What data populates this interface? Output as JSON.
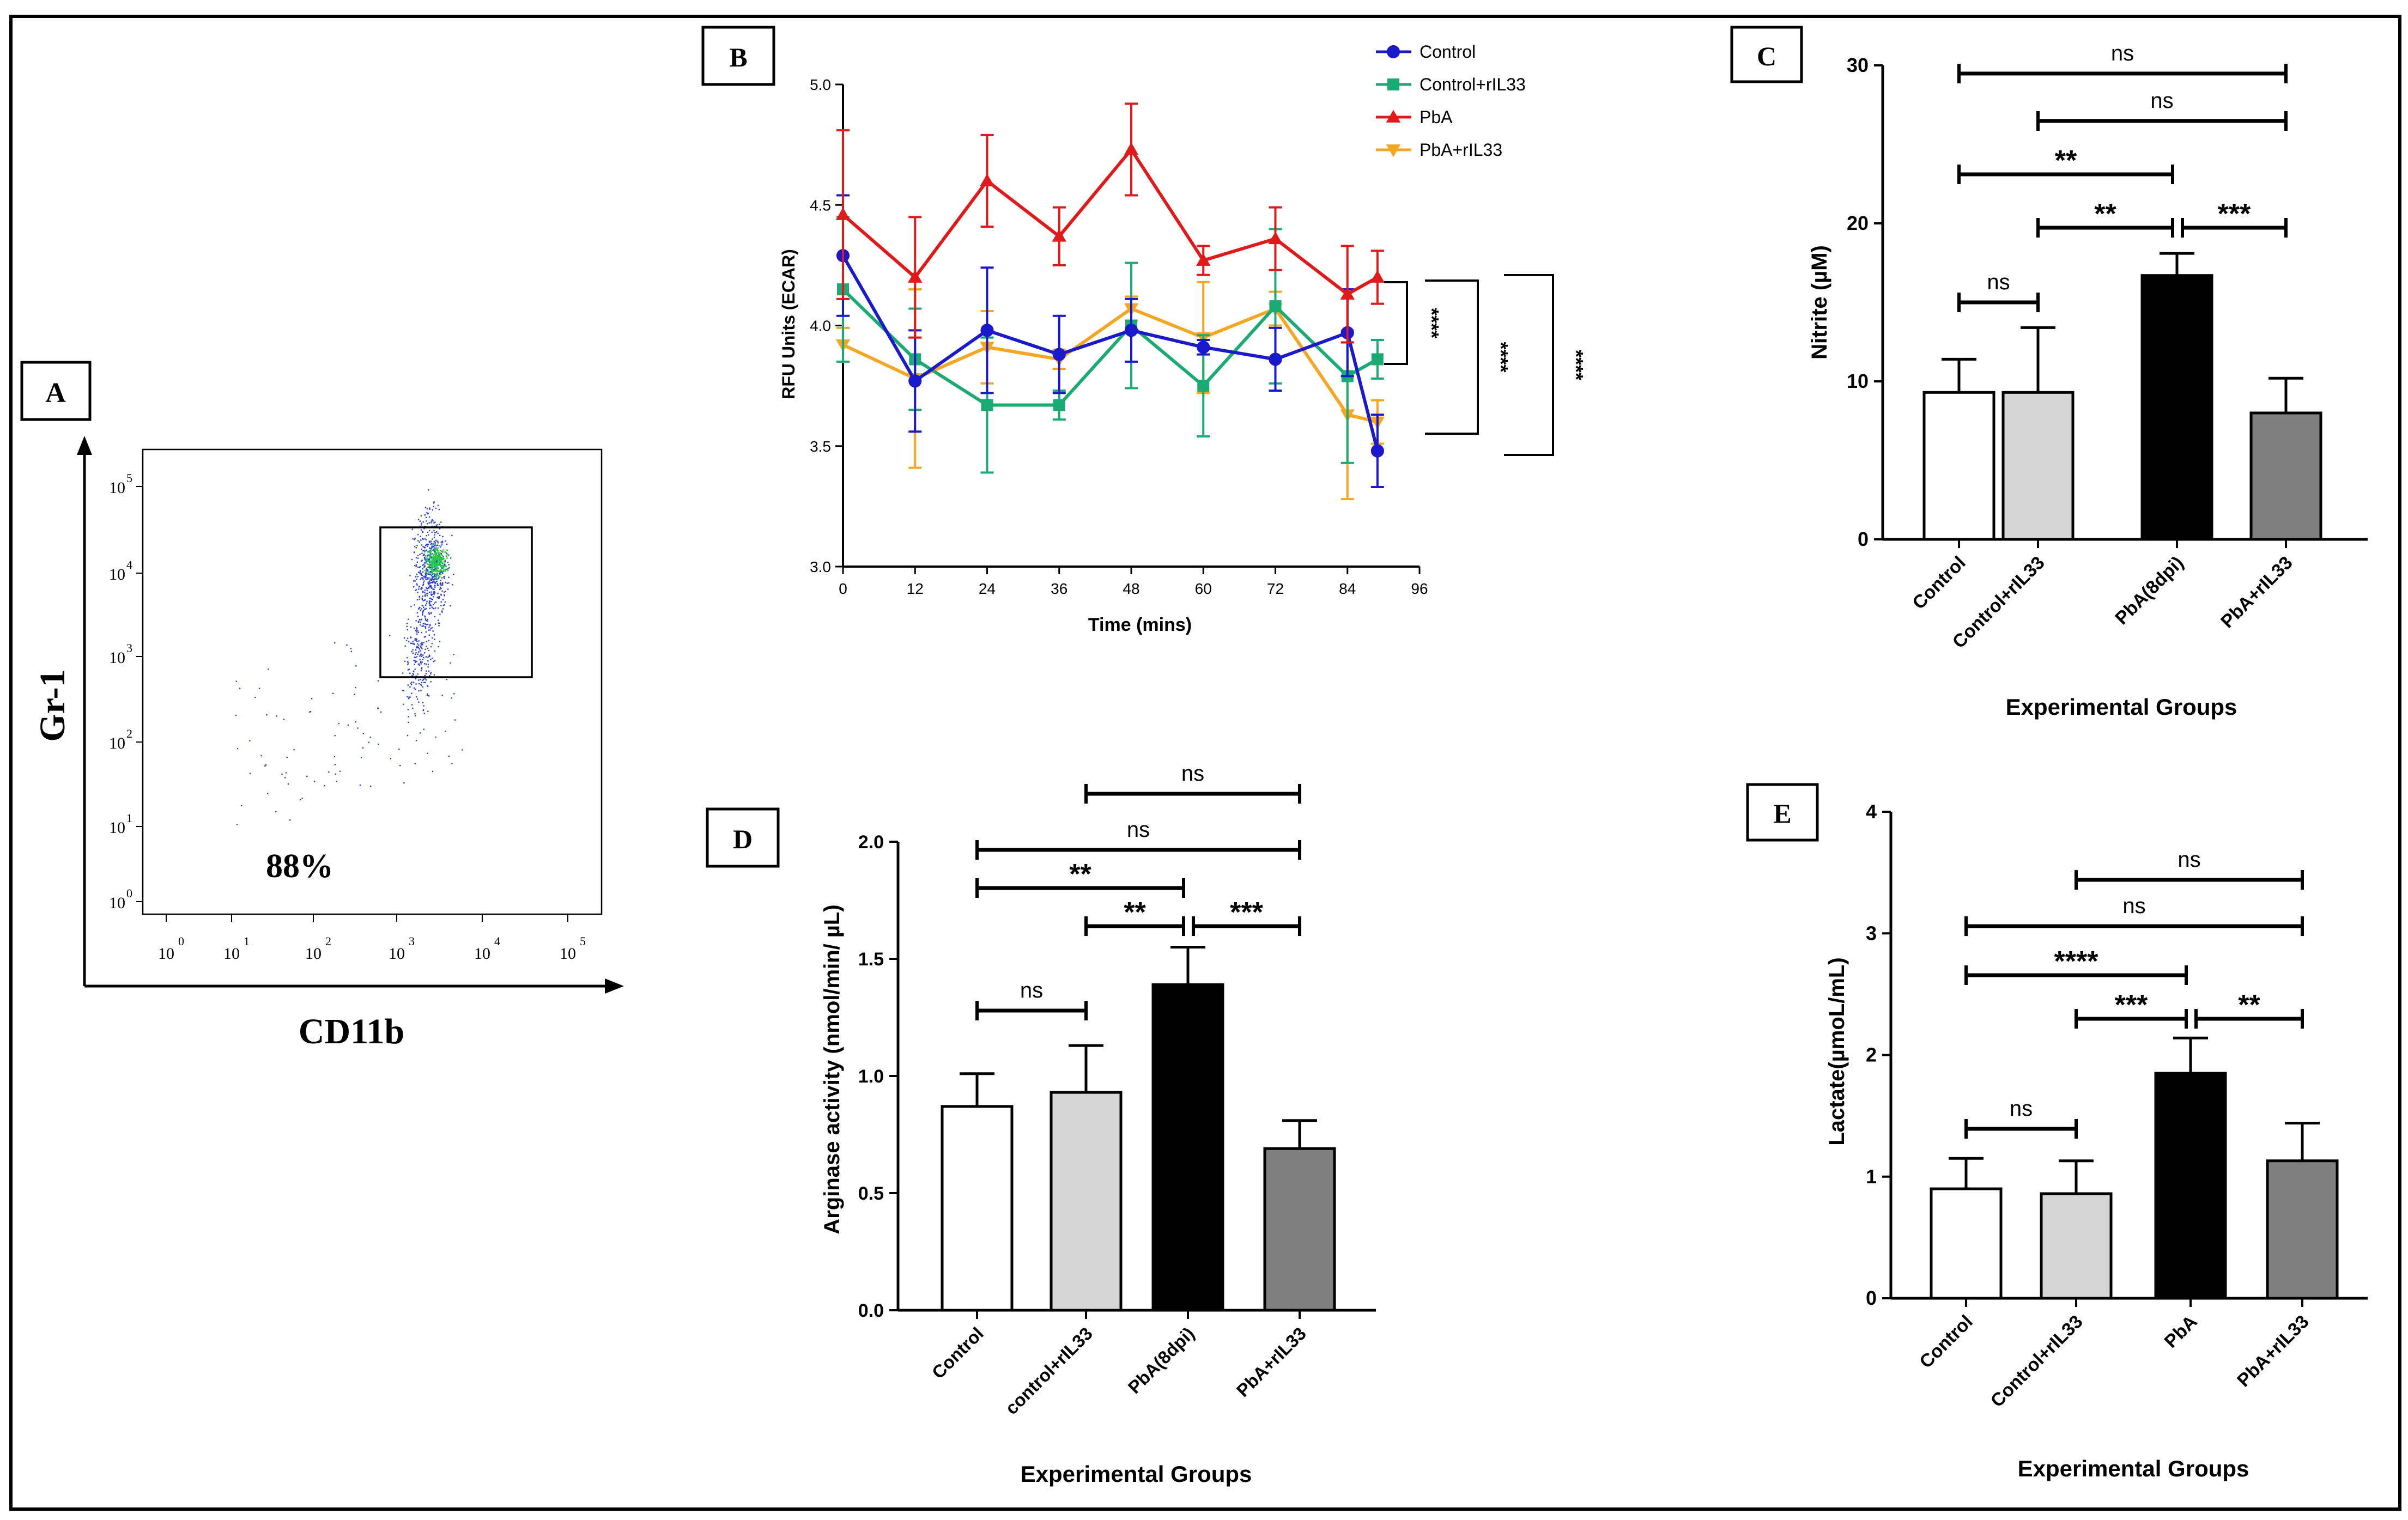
{
  "colors": {
    "control": "#1a1acc",
    "control_ril33": "#1aaa73",
    "pba": "#e01a1a",
    "pba_ril33": "#f5a623",
    "bar_control": "#ffffff",
    "bar_control_ril33": "#d6d6d6",
    "bar_pba": "#000000",
    "bar_pba_ril33": "#7f7f7f",
    "flow_dots": "#2a3fd0",
    "flow_core": "#22cc44"
  },
  "chart_data": [
    {
      "panel": "A",
      "type": "scatter",
      "title": "",
      "xlabel": "CD11b",
      "ylabel": "Gr-1",
      "x_scale": "log",
      "y_scale": "log",
      "x_ticks": [
        "10",
        "10",
        "10",
        "10",
        "10",
        "10"
      ],
      "x_exponents": [
        "0",
        "1",
        "2",
        "3",
        "4",
        "5"
      ],
      "y_ticks": [
        "10",
        "10",
        "10",
        "10",
        "10",
        "10"
      ],
      "y_exponents": [
        "0",
        "1",
        "2",
        "3",
        "4",
        "5"
      ],
      "gate_percent": "88%"
    },
    {
      "panel": "B",
      "type": "line",
      "xlabel": "Time (mins)",
      "ylabel": "RFU Units (ECAR)",
      "xlim": [
        0,
        96
      ],
      "ylim": [
        3.0,
        5.0
      ],
      "x_ticks": [
        "0",
        "12",
        "24",
        "36",
        "48",
        "60",
        "72",
        "84",
        "96"
      ],
      "y_ticks": [
        "3.0",
        "3.5",
        "4.0",
        "4.5",
        "5.0"
      ],
      "x": [
        0,
        12,
        24,
        36,
        48,
        60,
        72,
        84,
        89
      ],
      "series": [
        {
          "name": "Control",
          "marker": "circle",
          "values": [
            4.29,
            3.77,
            3.98,
            3.88,
            3.98,
            3.91,
            3.86,
            3.97,
            3.48
          ],
          "errors": [
            0.25,
            0.21,
            0.26,
            0.16,
            0.13,
            0.03,
            0.13,
            0.18,
            0.15
          ]
        },
        {
          "name": "Control+rIL33",
          "marker": "square",
          "values": [
            4.15,
            3.86,
            3.67,
            3.67,
            4.0,
            3.75,
            4.08,
            3.79,
            3.86
          ],
          "errors": [
            0.3,
            0.21,
            0.28,
            0.06,
            0.26,
            0.21,
            0.32,
            0.36,
            0.08
          ]
        },
        {
          "name": "PbA",
          "marker": "triangle-up",
          "values": [
            4.46,
            4.2,
            4.6,
            4.37,
            4.73,
            4.27,
            4.36,
            4.13,
            4.2
          ],
          "errors": [
            0.35,
            0.25,
            0.19,
            0.12,
            0.19,
            0.06,
            0.13,
            0.2,
            0.11
          ]
        },
        {
          "name": "PbA+rIL33",
          "marker": "triangle-down",
          "values": [
            3.92,
            3.78,
            3.91,
            3.86,
            4.07,
            3.95,
            4.07,
            3.63,
            3.6
          ],
          "errors": [
            0.07,
            0.37,
            0.15,
            0.04,
            0.05,
            0.23,
            0.07,
            0.35,
            0.09
          ]
        }
      ],
      "legend": "top-right",
      "significance": [
        "****",
        "****",
        "****"
      ]
    },
    {
      "panel": "C",
      "type": "bar",
      "xlabel": "Experimental Groups",
      "ylabel": "Nitrite (µM)",
      "ylim": [
        0,
        30
      ],
      "y_ticks": [
        "0",
        "10",
        "20",
        "30"
      ],
      "categories": [
        "Control",
        "Control+rIL33",
        "PbA(8dpi)",
        "PbA+rIL33"
      ],
      "values": [
        9.3,
        9.3,
        16.7,
        8.0
      ],
      "errors": [
        2.1,
        4.1,
        1.4,
        2.2
      ],
      "significance": [
        {
          "from": 0,
          "to": 3,
          "label": "ns"
        },
        {
          "from": 1,
          "to": 3,
          "label": "ns"
        },
        {
          "from": 0,
          "to": 2,
          "label": "**"
        },
        {
          "from": 1,
          "to": 2,
          "label": "**"
        },
        {
          "from": 2,
          "to": 3,
          "label": "***"
        },
        {
          "from": 0,
          "to": 1,
          "label": "ns"
        }
      ]
    },
    {
      "panel": "D",
      "type": "bar",
      "xlabel": "Experimental Groups",
      "ylabel": "Arginase activity (nmol/min/ µL)",
      "ylim": [
        0,
        2.0
      ],
      "y_ticks": [
        "0.0",
        "0.5",
        "1.0",
        "1.5",
        "2.0"
      ],
      "categories": [
        "Control",
        "control+rIL33",
        "PbA(8dpi)",
        "PbA+rIL33"
      ],
      "values": [
        0.87,
        0.93,
        1.39,
        0.69
      ],
      "errors": [
        0.14,
        0.2,
        0.16,
        0.12
      ],
      "significance": [
        {
          "from": 1,
          "to": 3,
          "label": "ns"
        },
        {
          "from": 0,
          "to": 3,
          "label": "ns"
        },
        {
          "from": 0,
          "to": 2,
          "label": "**"
        },
        {
          "from": 1,
          "to": 2,
          "label": "**"
        },
        {
          "from": 2,
          "to": 3,
          "label": "***"
        },
        {
          "from": 0,
          "to": 1,
          "label": "ns"
        }
      ]
    },
    {
      "panel": "E",
      "type": "bar",
      "xlabel": "Experimental Groups",
      "ylabel": "Lactate(µmoL/mL)",
      "ylim": [
        0,
        4
      ],
      "y_ticks": [
        "0",
        "1",
        "2",
        "3",
        "4"
      ],
      "categories": [
        "Control",
        "Control+rIL33",
        "PbA",
        "PbA+rIL33"
      ],
      "values": [
        0.9,
        0.86,
        1.85,
        1.13
      ],
      "errors": [
        0.25,
        0.27,
        0.29,
        0.31
      ],
      "significance": [
        {
          "from": 1,
          "to": 3,
          "label": "ns"
        },
        {
          "from": 0,
          "to": 3,
          "label": "ns"
        },
        {
          "from": 0,
          "to": 2,
          "label": "****"
        },
        {
          "from": 1,
          "to": 2,
          "label": "***"
        },
        {
          "from": 2,
          "to": 3,
          "label": "**"
        },
        {
          "from": 0,
          "to": 1,
          "label": "ns"
        }
      ]
    }
  ]
}
